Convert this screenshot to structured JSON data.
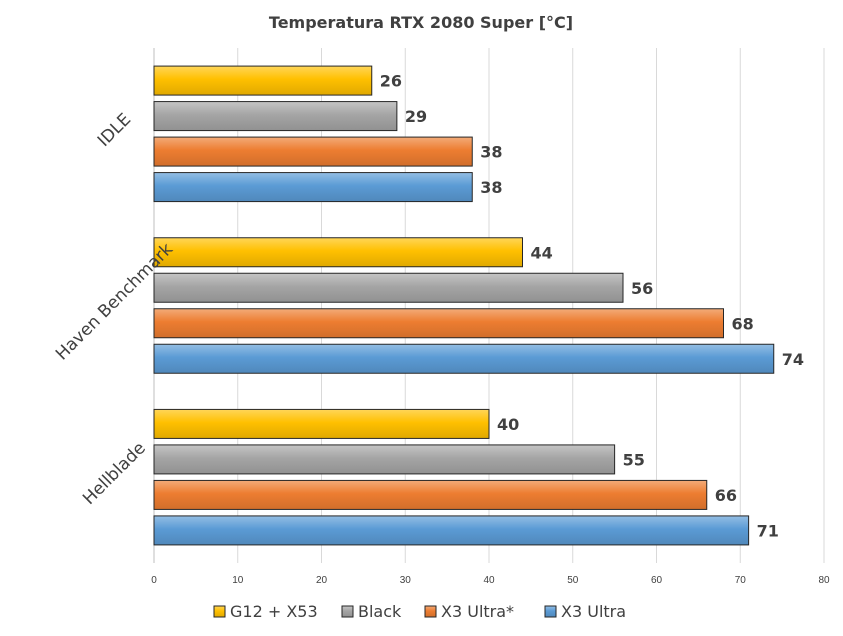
{
  "chart_data": {
    "type": "bar",
    "orientation": "horizontal",
    "title": "Temperatura RTX 2080 Super [°C]",
    "xlabel": "",
    "ylabel": "",
    "xlim": [
      0,
      80
    ],
    "x_ticks": [
      0,
      10,
      20,
      30,
      40,
      50,
      60,
      70,
      80
    ],
    "grid": true,
    "legend_position": "bottom",
    "categories": [
      "IDLE",
      "Haven Benchmark",
      "Hellblade"
    ],
    "series": [
      {
        "name": "G12 + X53",
        "color": "#FFC000",
        "values": [
          26,
          44,
          40
        ]
      },
      {
        "name": "Black",
        "color": "#A5A5A5",
        "values": [
          29,
          56,
          55
        ]
      },
      {
        "name": "X3 Ultra*",
        "color": "#ED7D31",
        "values": [
          38,
          68,
          66
        ]
      },
      {
        "name": "X3 Ultra",
        "color": "#5B9BD5",
        "values": [
          38,
          74,
          71
        ]
      }
    ]
  }
}
